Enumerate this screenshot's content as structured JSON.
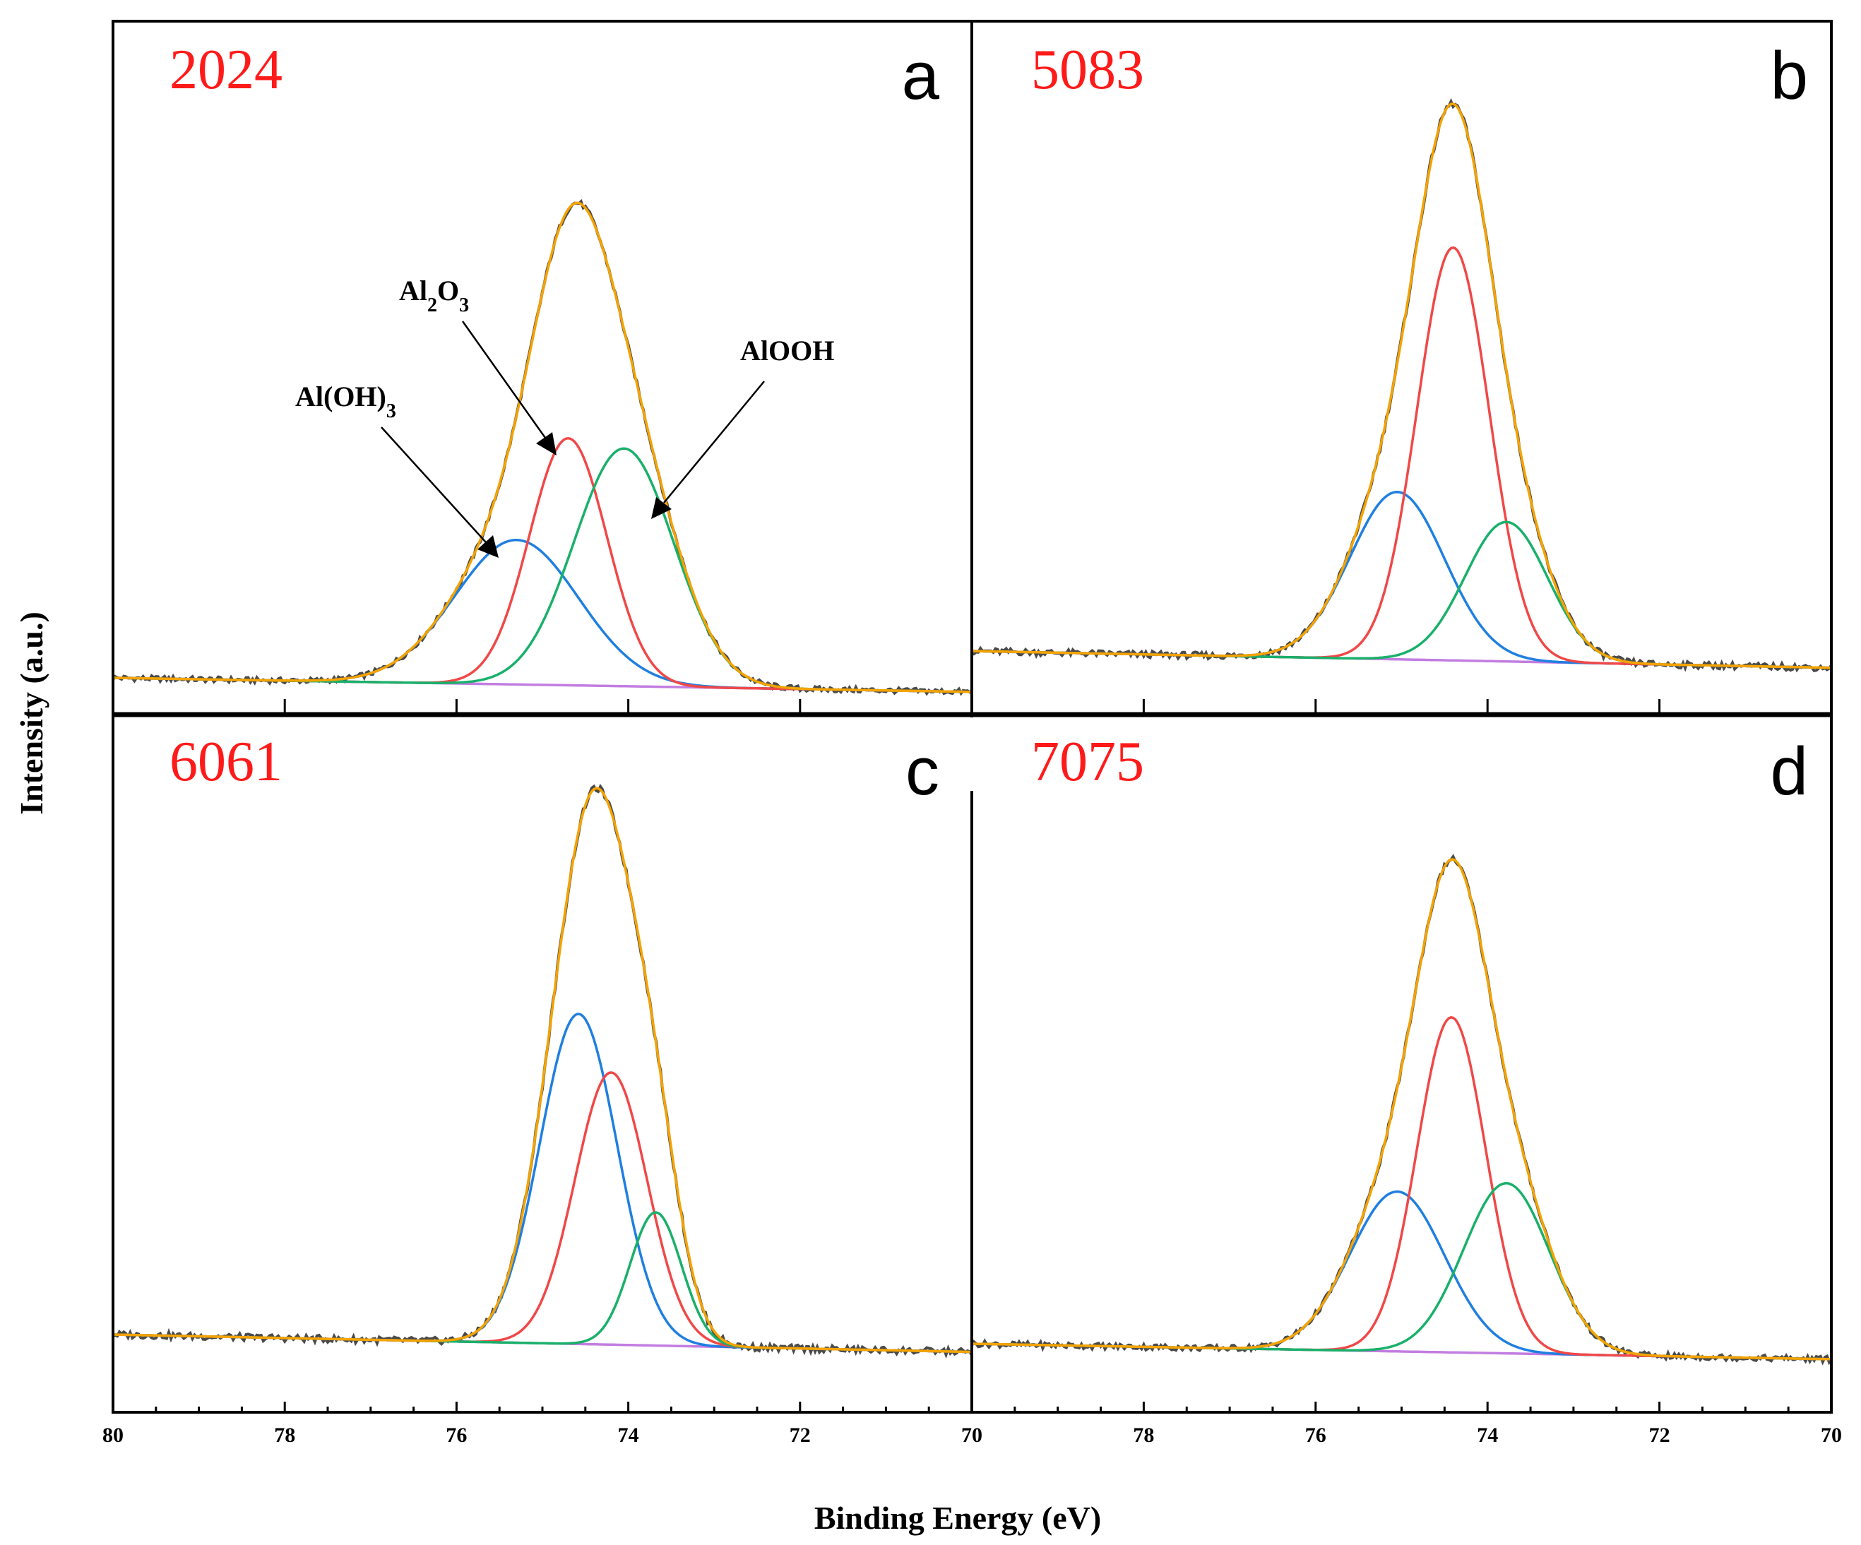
{
  "chart_data": {
    "type": "line",
    "ylabel": "Intensity (a.u.)",
    "xlabel": "Binding Energy (eV)",
    "xlim": [
      80,
      70
    ],
    "x_ticks": [
      "80",
      "78",
      "76",
      "74",
      "72",
      "70"
    ],
    "colors": {
      "raw": "#4a4a4a",
      "envelope": "#f5a300",
      "AlOH3": "#1f7fe0",
      "Al2O3": "#f04848",
      "AlOOH": "#19b06a",
      "background": "#c27de0",
      "alloy_label": "#ff1a1a"
    },
    "annotations": {
      "AlOH3": {
        "main": "Al(OH)",
        "sub": "3"
      },
      "Al2O3": {
        "part1": "Al",
        "sub1": "2",
        "part2": "O",
        "sub2": "3"
      },
      "AlOOH": {
        "main": "AlOOH"
      }
    },
    "panels": [
      {
        "letter": "a",
        "alloy": "2024",
        "baseline": [
          0.03,
          0.0
        ],
        "components": [
          {
            "name": "Al(OH)3",
            "color_key": "AlOH3",
            "center": 75.3,
            "height": 0.31,
            "sigma": 0.72
          },
          {
            "name": "Al2O3",
            "color_key": "Al2O3",
            "center": 74.7,
            "height": 0.53,
            "sigma": 0.45
          },
          {
            "name": "AlOOH",
            "color_key": "AlOOH",
            "center": 74.05,
            "height": 0.51,
            "sigma": 0.58
          }
        ]
      },
      {
        "letter": "b",
        "alloy": "5083",
        "baseline": [
          0.03,
          0.0
        ],
        "components": [
          {
            "name": "Al(OH)3",
            "color_key": "AlOH3",
            "center": 75.05,
            "height": 0.3,
            "sigma": 0.55
          },
          {
            "name": "Al2O3",
            "color_key": "Al2O3",
            "center": 74.4,
            "height": 0.74,
            "sigma": 0.42
          },
          {
            "name": "AlOOH",
            "color_key": "AlOOH",
            "center": 73.78,
            "height": 0.25,
            "sigma": 0.48
          }
        ]
      },
      {
        "letter": "c",
        "alloy": "6061",
        "baseline": [
          0.03,
          0.0
        ],
        "components": [
          {
            "name": "Al(OH)3",
            "color_key": "AlOH3",
            "center": 74.58,
            "height": 0.57,
            "sigma": 0.45
          },
          {
            "name": "Al2O3",
            "color_key": "Al2O3",
            "center": 74.2,
            "height": 0.47,
            "sigma": 0.42
          },
          {
            "name": "AlOOH",
            "color_key": "AlOOH",
            "center": 73.68,
            "height": 0.23,
            "sigma": 0.3
          }
        ]
      },
      {
        "letter": "d",
        "alloy": "7075",
        "baseline": [
          0.03,
          0.0
        ],
        "components": [
          {
            "name": "Al(OH)3",
            "color_key": "AlOH3",
            "center": 75.05,
            "height": 0.31,
            "sigma": 0.55
          },
          {
            "name": "Al2O3",
            "color_key": "Al2O3",
            "center": 74.42,
            "height": 0.65,
            "sigma": 0.4
          },
          {
            "name": "AlOOH",
            "color_key": "AlOOH",
            "center": 73.78,
            "height": 0.33,
            "sigma": 0.5
          }
        ]
      }
    ]
  }
}
